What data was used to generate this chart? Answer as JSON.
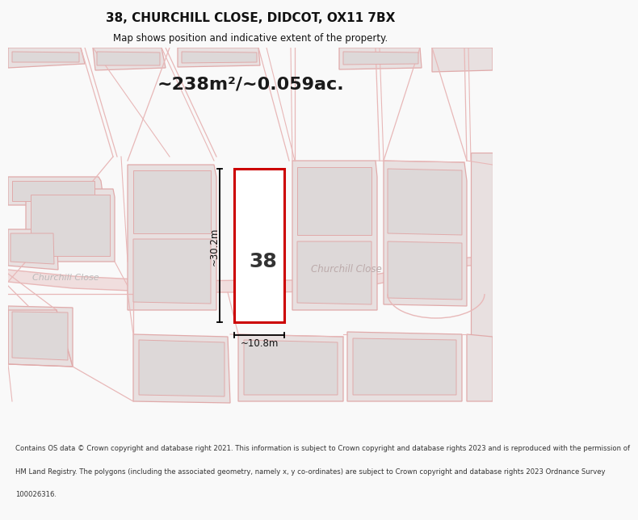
{
  "title": "38, CHURCHILL CLOSE, DIDCOT, OX11 7BX",
  "subtitle": "Map shows position and indicative extent of the property.",
  "area_text": "~238m²/~0.059ac.",
  "property_number": "38",
  "dim_height": "~30.2m",
  "dim_width": "~10.8m",
  "footer_lines": [
    "Contains OS data © Crown copyright and database right 2021. This information is subject to Crown copyright and database rights 2023 and is reproduced with the permission of",
    "HM Land Registry. The polygons (including the associated geometry, namely x, y co-ordinates) are subject to Crown copyright and database rights 2023 Ordnance Survey",
    "100026316."
  ],
  "bg_color": "#f9f9f9",
  "map_bg": "#f0eeec",
  "road_stroke": "#e8b8b8",
  "road_fill": "#f0dede",
  "building_stroke": "#e0aaaa",
  "building_fill": "#e8e0e0",
  "inner_fill": "#ddd8d8",
  "plot_stroke": "#cc0000",
  "plot_fill": "#ffffff",
  "dim_color": "#111111",
  "label_color": "#bbbbbb",
  "title_color": "#111111",
  "footer_color": "#333333"
}
